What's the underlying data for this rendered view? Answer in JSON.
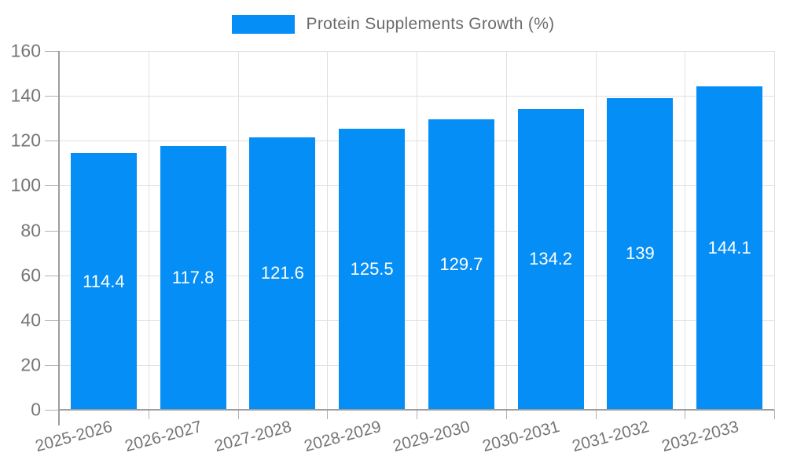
{
  "chart_data": {
    "type": "bar",
    "title": "",
    "legend_label": "Protein Supplements Growth (%)",
    "legend_position": "top",
    "categories": [
      "2025-2026",
      "2026-2027",
      "2027-2028",
      "2028-2029",
      "2029-2030",
      "2030-2031",
      "2031-2032",
      "2032-2033"
    ],
    "values": [
      114.4,
      117.8,
      121.6,
      125.5,
      129.7,
      134.2,
      139,
      144.1
    ],
    "data_labels": [
      "114.4",
      "117.8",
      "121.6",
      "125.5",
      "129.7",
      "134.2",
      "139",
      "144.1"
    ],
    "xlabel": "",
    "ylabel": "",
    "ylim": [
      0,
      160
    ],
    "yticks": [
      0,
      20,
      40,
      60,
      80,
      100,
      120,
      140,
      160
    ],
    "ytick_labels": [
      "0",
      "20",
      "40",
      "60",
      "80",
      "100",
      "120",
      "140",
      "160"
    ],
    "x_tick_rotation_deg": -15,
    "grid": "on",
    "data_label_position": "inside-center",
    "colors": {
      "bar": "#058EF5",
      "grid": "#e0e0e0",
      "axis": "#9e9e9e",
      "outer_tick": "#b0b0b0",
      "tick_text": "#757575",
      "legend_text": "#6b6b6b",
      "data_label_text": "#ffffff",
      "background": "#ffffff"
    }
  }
}
